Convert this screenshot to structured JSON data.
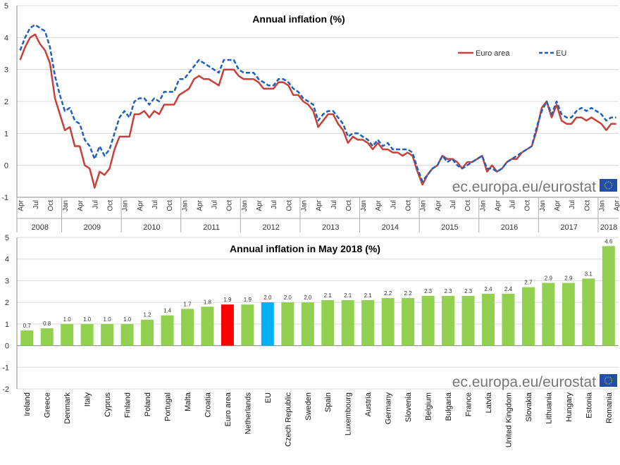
{
  "watermark": "ec.europa.eu/eurostat",
  "colors": {
    "euro_area_line": "#c9403a",
    "eu_line": "#1f5fbf",
    "bar_default": "#92d050",
    "bar_euro_area": "#ff0000",
    "bar_eu": "#00b0f0",
    "grid": "#d9d9d9",
    "eu_flag": "#1f4fa8"
  },
  "chart_data": [
    {
      "type": "line",
      "title": "Annual inflation (%)",
      "ylim": [
        -1,
        5
      ],
      "yticks": [
        -1,
        0,
        1,
        2,
        3,
        4,
        5
      ],
      "grid": true,
      "legend_position": "top-right",
      "start": "2008-04",
      "end": "2018-04",
      "month_tick_labels": [
        "Jan",
        "Apr",
        "Jul",
        "Oct"
      ],
      "years": [
        "2008",
        "2009",
        "2010",
        "2011",
        "2012",
        "2013",
        "2014",
        "2015",
        "2016",
        "2017",
        "2018"
      ],
      "series": [
        {
          "name": "Euro area",
          "style": "solid",
          "values": [
            3.3,
            3.7,
            4.0,
            4.1,
            3.8,
            3.6,
            3.2,
            2.1,
            1.6,
            1.1,
            1.2,
            0.6,
            0.6,
            0.0,
            -0.1,
            -0.7,
            -0.2,
            -0.3,
            -0.1,
            0.5,
            0.9,
            0.9,
            0.9,
            1.6,
            1.6,
            1.7,
            1.5,
            1.7,
            1.6,
            1.9,
            1.9,
            1.9,
            2.2,
            2.3,
            2.4,
            2.7,
            2.8,
            2.7,
            2.7,
            2.6,
            2.5,
            3.0,
            3.0,
            3.0,
            2.8,
            2.7,
            2.7,
            2.7,
            2.6,
            2.4,
            2.4,
            2.4,
            2.6,
            2.6,
            2.5,
            2.2,
            2.2,
            2.0,
            1.9,
            1.7,
            1.2,
            1.4,
            1.6,
            1.6,
            1.3,
            1.1,
            0.7,
            0.9,
            0.8,
            0.8,
            0.7,
            0.5,
            0.7,
            0.5,
            0.5,
            0.4,
            0.4,
            0.3,
            0.4,
            0.3,
            -0.2,
            -0.6,
            -0.3,
            -0.1,
            0.0,
            0.3,
            0.2,
            0.2,
            0.1,
            -0.1,
            0.1,
            0.1,
            0.2,
            0.3,
            -0.2,
            0.0,
            -0.2,
            -0.1,
            0.1,
            0.2,
            0.2,
            0.4,
            0.5,
            0.6,
            1.1,
            1.8,
            2.0,
            1.5,
            1.9,
            1.4,
            1.3,
            1.3,
            1.5,
            1.5,
            1.4,
            1.5,
            1.4,
            1.3,
            1.1,
            1.3,
            1.3
          ]
        },
        {
          "name": "EU",
          "style": "dashed",
          "values": [
            3.6,
            4.0,
            4.3,
            4.4,
            4.3,
            4.2,
            3.7,
            2.8,
            2.2,
            1.7,
            1.8,
            1.4,
            1.3,
            0.8,
            0.6,
            0.2,
            0.6,
            0.3,
            0.5,
            1.0,
            1.5,
            1.7,
            1.5,
            2.0,
            2.1,
            2.1,
            1.9,
            2.1,
            2.0,
            2.3,
            2.3,
            2.3,
            2.7,
            2.7,
            2.9,
            3.1,
            3.3,
            3.2,
            3.1,
            3.0,
            2.9,
            3.3,
            3.3,
            3.3,
            3.0,
            2.9,
            2.9,
            2.9,
            2.7,
            2.6,
            2.5,
            2.5,
            2.7,
            2.7,
            2.6,
            2.4,
            2.3,
            2.1,
            2.0,
            1.9,
            1.4,
            1.6,
            1.7,
            1.7,
            1.5,
            1.3,
            0.9,
            1.0,
            1.0,
            0.9,
            0.8,
            0.6,
            0.8,
            0.6,
            0.7,
            0.5,
            0.5,
            0.5,
            0.5,
            0.4,
            -0.1,
            -0.5,
            -0.3,
            -0.1,
            0.0,
            0.3,
            0.1,
            0.2,
            0.0,
            -0.1,
            0.0,
            0.1,
            0.2,
            0.3,
            -0.1,
            -0.1,
            -0.2,
            -0.1,
            0.1,
            0.2,
            0.3,
            0.4,
            0.5,
            0.6,
            1.2,
            1.7,
            2.0,
            1.6,
            2.0,
            1.6,
            1.5,
            1.5,
            1.7,
            1.8,
            1.7,
            1.8,
            1.7,
            1.6,
            1.4,
            1.5,
            1.5
          ]
        }
      ]
    },
    {
      "type": "bar",
      "title": "Annual inflation in May 2018 (%)",
      "ylim": [
        -2,
        5
      ],
      "yticks": [
        -2,
        -1,
        0,
        1,
        2,
        3,
        4,
        5
      ],
      "grid": true,
      "categories": [
        "Ireland",
        "Greece",
        "Denmark",
        "Italy",
        "Cyprus",
        "Finland",
        "Poland",
        "Portugal",
        "Malta",
        "Croatia",
        "Euro area",
        "Netherlands",
        "EU",
        "Czech Republic",
        "Sweden",
        "Spain",
        "Luxembourg",
        "Austria",
        "Germany",
        "Slovenia",
        "Belgium",
        "Bulgaria",
        "France",
        "Latvia",
        "United Kingdom",
        "Slovakia",
        "Lithuania",
        "Hungary",
        "Estonia",
        "Romania"
      ],
      "values": [
        0.7,
        0.8,
        1.0,
        1.0,
        1.0,
        1.0,
        1.2,
        1.4,
        1.7,
        1.8,
        1.9,
        1.9,
        2.0,
        2.0,
        2.0,
        2.1,
        2.1,
        2.1,
        2.2,
        2.2,
        2.3,
        2.3,
        2.3,
        2.4,
        2.4,
        2.7,
        2.9,
        2.9,
        3.1,
        4.6
      ],
      "data_labels": [
        "0.7",
        "0.8",
        "1.0",
        "1.0",
        "1.0",
        "1.0",
        "1.2",
        "1.4",
        "1.7",
        "1.8",
        "1.9",
        "1.9",
        "2.0",
        "2.0",
        "2.0",
        "2.1",
        "2.1",
        "2.1",
        "2.2",
        "2.2",
        "2.3",
        "2.3",
        "2.3",
        "2.4",
        "2.4",
        "2.7",
        "2.9",
        "2.9",
        "3.1",
        "4.6"
      ],
      "highlight": {
        "Euro area": "bar_euro_area",
        "EU": "bar_eu"
      }
    }
  ]
}
